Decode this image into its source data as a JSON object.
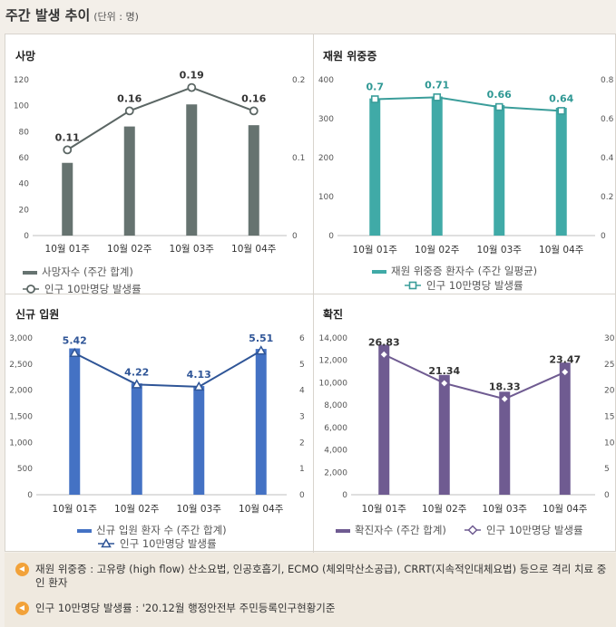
{
  "header": {
    "title": "주간 발생 추이",
    "unit": "(단위 : 명)"
  },
  "chart_data": [
    {
      "id": "death",
      "type": "bar+line",
      "title": "사망",
      "categories": [
        "10월 01주",
        "10월 02주",
        "10월 03주",
        "10월 04주"
      ],
      "bar": {
        "name": "사망자수 (주간 합계)",
        "values": [
          56,
          84,
          101,
          85
        ],
        "color": "#667370"
      },
      "line": {
        "name": "인구 10만명당 발생률",
        "values": [
          0.11,
          0.16,
          0.19,
          0.16
        ],
        "labels": [
          "0.11",
          "0.16",
          "0.19",
          "0.16"
        ],
        "color": "#5b6664",
        "marker": "circle",
        "label_color": "#333333"
      },
      "y_left": {
        "min": 0,
        "max": 120,
        "ticks": [
          "0",
          "20",
          "40",
          "60",
          "80",
          "100",
          "120"
        ]
      },
      "y_right": {
        "min": 0,
        "max": 0.2,
        "ticks": [
          "0",
          "0.1",
          "0.2"
        ]
      },
      "legend": "stacked"
    },
    {
      "id": "severe",
      "type": "bar+line",
      "title": "재원 위중증",
      "categories": [
        "10월 01주",
        "10월 02주",
        "10월 03주",
        "10월 04주"
      ],
      "bar": {
        "name": "재원 위중증 환자수 (주간 일평균)",
        "values": [
          352,
          357,
          335,
          328
        ],
        "color": "#40aaa7"
      },
      "line": {
        "name": "인구 10만명당 발생률",
        "values": [
          0.7,
          0.71,
          0.66,
          0.64
        ],
        "labels": [
          "0.7",
          "0.71",
          "0.66",
          "0.64"
        ],
        "color": "#3a9d9a",
        "marker": "square",
        "label_color": "#2f9894"
      },
      "y_left": {
        "min": 0,
        "max": 400,
        "ticks": [
          "0",
          "100",
          "200",
          "300",
          "400"
        ]
      },
      "y_right": {
        "min": 0,
        "max": 0.8,
        "ticks": [
          "0",
          "0.2",
          "0.4",
          "0.6",
          "0.8"
        ]
      },
      "legend": "stacked"
    },
    {
      "id": "hosp",
      "type": "bar+line",
      "title": "신규 입원",
      "categories": [
        "10월 01주",
        "10월 02주",
        "10월 03주",
        "10월 04주"
      ],
      "bar": {
        "name": "신규 입원 환자 수 (주간 합계)",
        "values": [
          2800,
          2130,
          2080,
          2790
        ],
        "color": "#4472c4"
      },
      "line": {
        "name": "인구 10만명당 발생률",
        "values": [
          5.42,
          4.22,
          4.13,
          5.51
        ],
        "labels": [
          "5.42",
          "4.22",
          "4.13",
          "5.51"
        ],
        "color": "#2f5597",
        "marker": "triangle",
        "label_color": "#2f5597"
      },
      "y_left": {
        "min": 0,
        "max": 3000,
        "ticks": [
          "0",
          "500",
          "1,000",
          "1,500",
          "2,000",
          "2,500",
          "3,000"
        ]
      },
      "y_right": {
        "min": 0,
        "max": 6,
        "ticks": [
          "0",
          "1",
          "2",
          "3",
          "4",
          "5",
          "6"
        ]
      },
      "legend": "stacked"
    },
    {
      "id": "confirmed",
      "type": "bar+line",
      "title": "확진",
      "categories": [
        "10월 01주",
        "10월 02주",
        "10월 03주",
        "10월 04주"
      ],
      "bar": {
        "name": "확진자수 (주간 합계)",
        "values": [
          13400,
          10700,
          9200,
          11800
        ],
        "color": "#6f5b91"
      },
      "line": {
        "name": "인구 10만명당 발생률",
        "values": [
          26.83,
          21.34,
          18.33,
          23.47
        ],
        "labels": [
          "26.83",
          "21.34",
          "18.33",
          "23.47"
        ],
        "color": "#6f5b91",
        "marker": "diamond",
        "label_color": "#333333"
      },
      "y_left": {
        "min": 0,
        "max": 14000,
        "ticks": [
          "0",
          "2,000",
          "4,000",
          "6,000",
          "8,000",
          "10,000",
          "12,000",
          "14,000"
        ]
      },
      "y_right": {
        "min": 0,
        "max": 30,
        "ticks": [
          "0",
          "5",
          "10",
          "15",
          "20",
          "25",
          "30"
        ]
      },
      "legend": "inline"
    }
  ],
  "notes": [
    {
      "text": "재원 위중증 : 고유량 (high flow) 산소요법, 인공호흡기, ECMO (체외막산소공급), CRRT(지속적인대체요법) 등으로 격리 치료 중인 환자"
    },
    {
      "text": "인구 10만명당 발생률 : '20.12월 행정안전부 주민등록인구현황기준"
    }
  ],
  "colors": {
    "background": "#f3efe9",
    "panel": "#ffffff",
    "icon": "#f2a23a"
  }
}
